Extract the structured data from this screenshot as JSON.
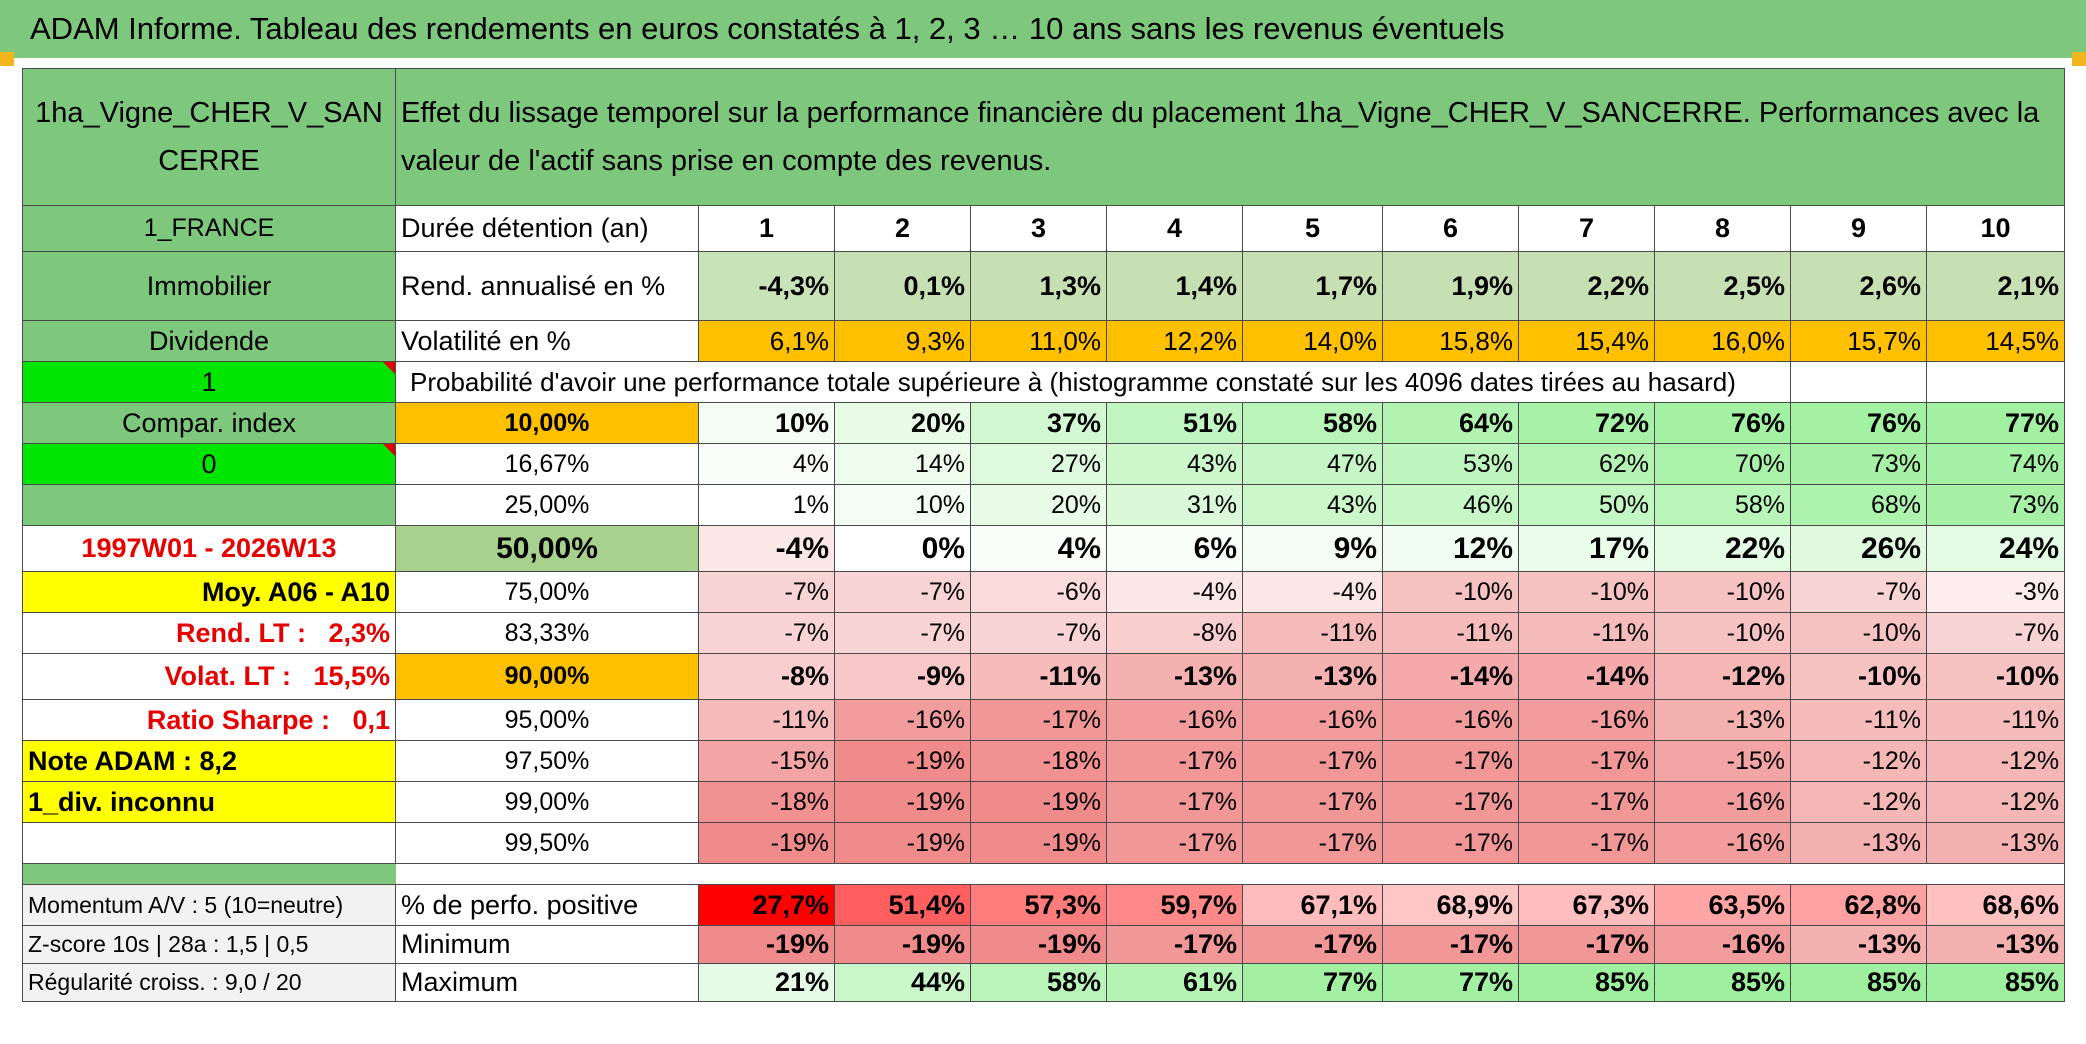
{
  "header_title": "ADAM Informe. Tableau des rendements en euros constatés à 1, 2, 3 … 10 ans sans les revenus éventuels",
  "asset_name": "1ha_Vigne_CHER_V_SANCERRE",
  "description": "Effet du lissage temporel sur la performance financière du placement 1ha_Vigne_CHER_V_SANCERRE. Performances avec la valeur de l'actif sans prise en compte des revenus.",
  "left_panel": {
    "country": "1_FRANCE",
    "category": "Immobilier",
    "dividend_label": "Dividende",
    "dividend_value": "1",
    "compar_index_label": "Compar. index",
    "compar_index_value": "0",
    "period": "1997W01 - 2026W13",
    "moy": "Moy. A06 - A10",
    "rend_lt": "Rend. LT :   2,3%",
    "volat_lt": "Volat. LT :   15,5%",
    "sharpe": "Ratio Sharpe :   0,1",
    "note": "Note ADAM : 8,2",
    "div": "1_div. inconnu",
    "momentum": "Momentum A/V : 5 (10=neutre)",
    "zscore": "Z-score 10s | 28a : 1,5 | 0,5",
    "regularite": "Régularité croiss. : 9,0 / 20"
  },
  "labels": {
    "duree": "Durée détention (an)",
    "rend": "Rend. annualisé en %",
    "volat": "Volatilité en %",
    "proba": "Probabilité d'avoir une performance totale supérieure à (histogramme constaté sur les 4096 dates tirées au hasard)",
    "pos": "% de perfo. positive",
    "min": "Minimum",
    "max": "Maximum"
  },
  "years": [
    "1",
    "2",
    "3",
    "4",
    "5",
    "6",
    "7",
    "8",
    "9",
    "10"
  ],
  "rend": [
    "-4,3%",
    "0,1%",
    "1,3%",
    "1,4%",
    "1,7%",
    "1,9%",
    "2,2%",
    "2,5%",
    "2,6%",
    "2,1%"
  ],
  "volat": [
    "6,1%",
    "9,3%",
    "11,0%",
    "12,2%",
    "14,0%",
    "15,8%",
    "15,4%",
    "16,0%",
    "15,7%",
    "14,5%"
  ],
  "proba_rows": [
    {
      "threshold": "10,00%",
      "values": [
        "10%",
        "20%",
        "37%",
        "51%",
        "58%",
        "64%",
        "72%",
        "76%",
        "76%",
        "77%"
      ]
    },
    {
      "threshold": "16,67%",
      "values": [
        "4%",
        "14%",
        "27%",
        "43%",
        "47%",
        "53%",
        "62%",
        "70%",
        "73%",
        "74%"
      ]
    },
    {
      "threshold": "25,00%",
      "values": [
        "1%",
        "10%",
        "20%",
        "31%",
        "43%",
        "46%",
        "50%",
        "58%",
        "68%",
        "73%"
      ]
    },
    {
      "threshold": "50,00%",
      "values": [
        "-4%",
        "0%",
        "4%",
        "6%",
        "9%",
        "12%",
        "17%",
        "22%",
        "26%",
        "24%"
      ]
    },
    {
      "threshold": "75,00%",
      "values": [
        "-7%",
        "-7%",
        "-6%",
        "-4%",
        "-4%",
        "-10%",
        "-10%",
        "-10%",
        "-7%",
        "-3%"
      ]
    },
    {
      "threshold": "83,33%",
      "values": [
        "-7%",
        "-7%",
        "-7%",
        "-8%",
        "-11%",
        "-11%",
        "-11%",
        "-10%",
        "-10%",
        "-7%"
      ]
    },
    {
      "threshold": "90,00%",
      "values": [
        "-8%",
        "-9%",
        "-11%",
        "-13%",
        "-13%",
        "-14%",
        "-14%",
        "-12%",
        "-10%",
        "-10%"
      ]
    },
    {
      "threshold": "95,00%",
      "values": [
        "-11%",
        "-16%",
        "-17%",
        "-16%",
        "-16%",
        "-16%",
        "-16%",
        "-13%",
        "-11%",
        "-11%"
      ]
    },
    {
      "threshold": "97,50%",
      "values": [
        "-15%",
        "-19%",
        "-18%",
        "-17%",
        "-17%",
        "-17%",
        "-17%",
        "-15%",
        "-12%",
        "-12%"
      ]
    },
    {
      "threshold": "99,00%",
      "values": [
        "-18%",
        "-19%",
        "-19%",
        "-17%",
        "-17%",
        "-17%",
        "-17%",
        "-16%",
        "-12%",
        "-12%"
      ]
    },
    {
      "threshold": "99,50%",
      "values": [
        "-19%",
        "-19%",
        "-19%",
        "-17%",
        "-17%",
        "-17%",
        "-17%",
        "-16%",
        "-13%",
        "-13%"
      ]
    }
  ],
  "pos": [
    "27,7%",
    "51,4%",
    "57,3%",
    "59,7%",
    "67,1%",
    "68,9%",
    "67,3%",
    "63,5%",
    "62,8%",
    "68,6%"
  ],
  "min": [
    "-19%",
    "-19%",
    "-19%",
    "-17%",
    "-17%",
    "-17%",
    "-17%",
    "-16%",
    "-13%",
    "-13%"
  ],
  "max": [
    "21%",
    "44%",
    "58%",
    "61%",
    "77%",
    "77%",
    "85%",
    "85%",
    "85%",
    "85%"
  ],
  "colors": {
    "header_green": "#7ec87e",
    "bright_green": "#00e600",
    "yellow": "#ffff00",
    "orange": "#ffc000",
    "rend_cell": "#c6e0b4",
    "red_text": "#e60000",
    "pos_fill": [
      "#ff0000",
      "#ff5f5f",
      "#ff7c7c",
      "#ff8989",
      "#ffbcbc",
      "#ffc6c6",
      "#ffbdbd",
      "#ffa5a5",
      "#ffa1a1",
      "#ffc0c0"
    ]
  }
}
